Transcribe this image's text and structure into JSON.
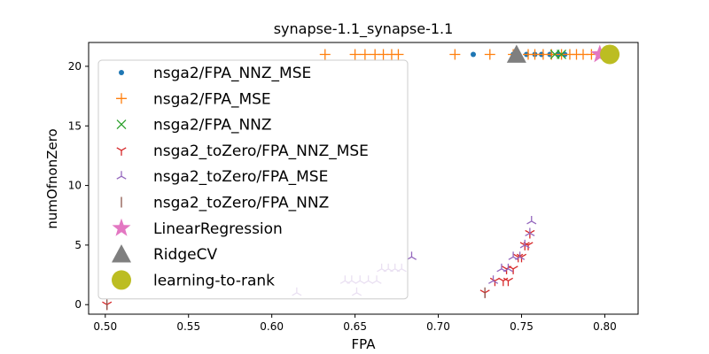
{
  "chart_data": {
    "type": "scatter",
    "title": "synapse-1.1_synapse-1.1",
    "xlabel": "FPA",
    "ylabel": "numOfnonZero",
    "xlim": [
      0.49,
      0.82
    ],
    "ylim": [
      -0.8,
      22
    ],
    "xticks": [
      "0.50",
      "0.55",
      "0.60",
      "0.65",
      "0.70",
      "0.75",
      "0.80"
    ],
    "xtick_values": [
      0.5,
      0.55,
      0.6,
      0.65,
      0.7,
      0.75,
      0.8
    ],
    "yticks": [
      "0",
      "5",
      "10",
      "15",
      "20"
    ],
    "ytick_values": [
      0,
      5,
      10,
      15,
      20
    ],
    "grid": false,
    "legend_position": "upper-left",
    "series": [
      {
        "name": "nsga2/FPA_NNZ_MSE",
        "marker": "dot",
        "color": "#1f77b4",
        "points": [
          [
            0.721,
            21
          ],
          [
            0.745,
            21
          ],
          [
            0.753,
            21
          ],
          [
            0.758,
            21
          ],
          [
            0.762,
            21
          ],
          [
            0.767,
            21
          ],
          [
            0.772,
            21
          ],
          [
            0.776,
            21
          ]
        ]
      },
      {
        "name": "nsga2/FPA_MSE",
        "marker": "plus",
        "color": "#ff7f0e",
        "points": [
          [
            0.632,
            21
          ],
          [
            0.65,
            21
          ],
          [
            0.656,
            21
          ],
          [
            0.662,
            21
          ],
          [
            0.667,
            21
          ],
          [
            0.672,
            21
          ],
          [
            0.676,
            21
          ],
          [
            0.71,
            21
          ],
          [
            0.731,
            21
          ],
          [
            0.745,
            21
          ],
          [
            0.754,
            21
          ],
          [
            0.758,
            21
          ],
          [
            0.763,
            21
          ],
          [
            0.768,
            21
          ],
          [
            0.774,
            21
          ],
          [
            0.779,
            21
          ],
          [
            0.783,
            21
          ],
          [
            0.787,
            21
          ],
          [
            0.792,
            21
          ]
        ]
      },
      {
        "name": "nsga2/FPA_NNZ",
        "marker": "x",
        "color": "#2ca02c",
        "points": [
          [
            0.77,
            21
          ],
          [
            0.774,
            21
          ]
        ]
      },
      {
        "name": "nsga2_toZero/FPA_NNZ_MSE",
        "marker": "tri_down",
        "color": "#d62728",
        "points": [
          [
            0.501,
            0
          ],
          [
            0.728,
            1
          ],
          [
            0.734,
            2
          ],
          [
            0.739,
            2
          ],
          [
            0.742,
            2
          ],
          [
            0.741,
            3
          ],
          [
            0.745,
            3
          ],
          [
            0.748,
            4
          ],
          [
            0.75,
            4
          ],
          [
            0.752,
            5
          ],
          [
            0.754,
            5
          ],
          [
            0.755,
            6
          ]
        ]
      },
      {
        "name": "nsga2_toZero/FPA_MSE",
        "marker": "tri_up",
        "color": "#9467bd",
        "points": [
          [
            0.615,
            1
          ],
          [
            0.651,
            1
          ],
          [
            0.644,
            2
          ],
          [
            0.648,
            2
          ],
          [
            0.653,
            2
          ],
          [
            0.658,
            2
          ],
          [
            0.663,
            2
          ],
          [
            0.666,
            3
          ],
          [
            0.67,
            3
          ],
          [
            0.674,
            3
          ],
          [
            0.678,
            3
          ],
          [
            0.684,
            4
          ],
          [
            0.733,
            2
          ],
          [
            0.738,
            3
          ],
          [
            0.742,
            3
          ],
          [
            0.745,
            4
          ],
          [
            0.749,
            4
          ],
          [
            0.752,
            5
          ],
          [
            0.755,
            6
          ],
          [
            0.756,
            7
          ]
        ]
      },
      {
        "name": "nsga2_toZero/FPA_NNZ",
        "marker": "vline",
        "color": "#8c564b",
        "points": [
          [
            0.501,
            0
          ],
          [
            0.728,
            1
          ]
        ]
      },
      {
        "name": "LinearRegression",
        "marker": "star",
        "color": "#e377c2",
        "points": [
          [
            0.797,
            21
          ]
        ]
      },
      {
        "name": "RidgeCV",
        "marker": "triangle",
        "color": "#7f7f7f",
        "points": [
          [
            0.747,
            21
          ]
        ]
      },
      {
        "name": "learning-to-rank",
        "marker": "circle",
        "color": "#bcbd22",
        "points": [
          [
            0.803,
            21
          ]
        ]
      }
    ]
  }
}
